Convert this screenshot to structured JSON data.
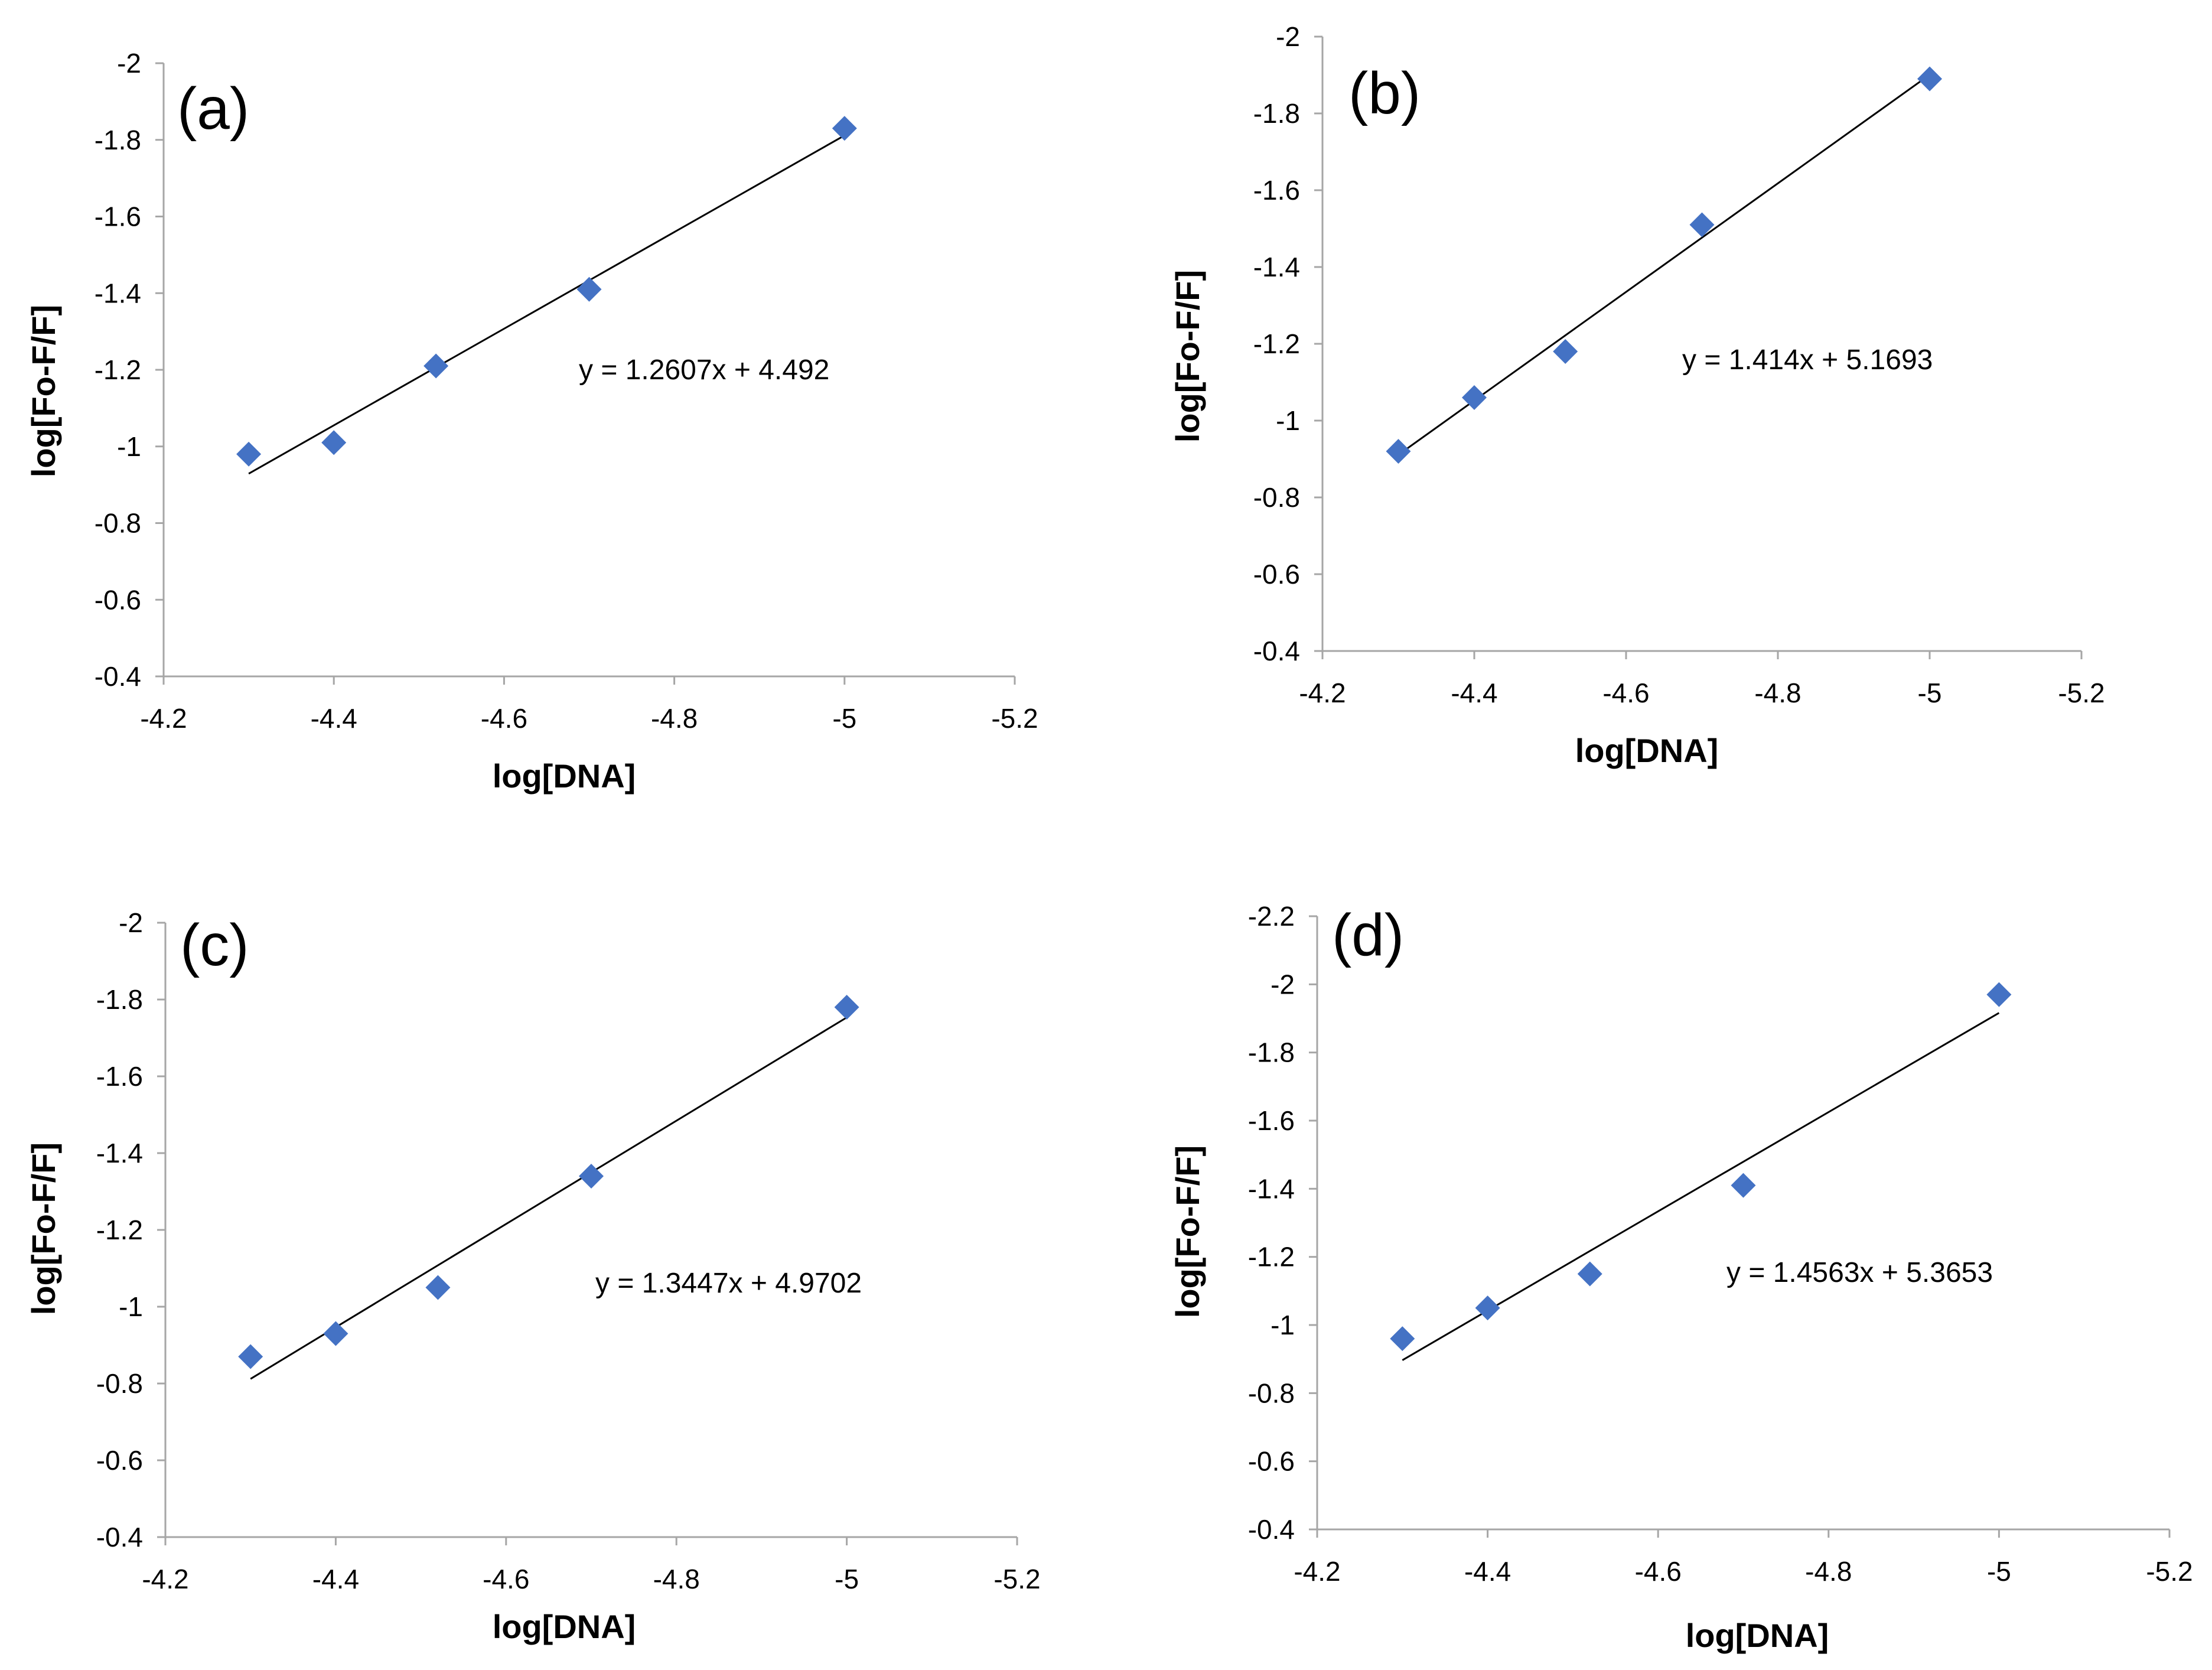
{
  "figure": {
    "marker_color": "#4472C4",
    "trend_color": "#000000",
    "axis_color": "#a6a6a6"
  },
  "chart_data": [
    {
      "type": "scatter",
      "panel_label": "(a)",
      "xlabel": "log[DNA]",
      "ylabel": "log[Fo-F/F]",
      "xlim": [
        -4.2,
        -5.2
      ],
      "ylim": [
        -0.4,
        -2
      ],
      "x_ticks": [
        -4.2,
        -4.4,
        -4.6,
        -4.8,
        -5,
        -5.2
      ],
      "x_tick_labels": [
        "-4.2",
        "-4.4",
        "-4.6",
        "-4.8",
        "-5",
        "-5.2"
      ],
      "y_ticks": [
        -0.4,
        -0.6,
        -0.8,
        -1,
        -1.2,
        -1.4,
        -1.6,
        -1.8,
        -2
      ],
      "y_tick_labels": [
        "-0.4",
        "-0.6",
        "-0.8",
        "-1",
        "-1.2",
        "-1.4",
        "-1.6",
        "-1.8",
        "-2"
      ],
      "x": [
        -4.3,
        -4.4,
        -4.52,
        -4.7,
        -5.0
      ],
      "y": [
        -0.98,
        -1.01,
        -1.21,
        -1.41,
        -1.83
      ],
      "trendline": {
        "slope": 1.2607,
        "intercept": 4.492,
        "x_range": [
          -4.3,
          -5.0
        ]
      },
      "equation": "y = 1.2607x + 4.492"
    },
    {
      "type": "scatter",
      "panel_label": "(b)",
      "xlabel": "log[DNA]",
      "ylabel": "log[Fo-F/F]",
      "xlim": [
        -4.2,
        -5.2
      ],
      "ylim": [
        -0.4,
        -2
      ],
      "x_ticks": [
        -4.2,
        -4.4,
        -4.6,
        -4.8,
        -5,
        -5.2
      ],
      "x_tick_labels": [
        "-4.2",
        "-4.4",
        "-4.6",
        "-4.8",
        "-5",
        "-5.2"
      ],
      "y_ticks": [
        -0.4,
        -0.6,
        -0.8,
        -1,
        -1.2,
        -1.4,
        -1.6,
        -1.8,
        -2
      ],
      "y_tick_labels": [
        "-0.4",
        "-0.6",
        "-0.8",
        "-1",
        "-1.2",
        "-1.4",
        "-1.6",
        "-1.8",
        "-2"
      ],
      "x": [
        -4.3,
        -4.4,
        -4.52,
        -4.7,
        -5.0
      ],
      "y": [
        -0.92,
        -1.06,
        -1.18,
        -1.51,
        -1.89
      ],
      "trendline": {
        "slope": 1.414,
        "intercept": 5.1693,
        "x_range": [
          -4.3,
          -5.0
        ]
      },
      "equation": "y = 1.414x + 5.1693"
    },
    {
      "type": "scatter",
      "panel_label": "(c)",
      "xlabel": "log[DNA]",
      "ylabel": "log[Fo-F/F]",
      "xlim": [
        -4.2,
        -5.2
      ],
      "ylim": [
        -0.4,
        -2
      ],
      "x_ticks": [
        -4.2,
        -4.4,
        -4.6,
        -4.8,
        -5,
        -5.2
      ],
      "x_tick_labels": [
        "-4.2",
        "-4.4",
        "-4.6",
        "-4.8",
        "-5",
        "-5.2"
      ],
      "y_ticks": [
        -0.4,
        -0.6,
        -0.8,
        -1,
        -1.2,
        -1.4,
        -1.6,
        -1.8,
        -2
      ],
      "y_tick_labels": [
        "-0.4",
        "-0.6",
        "-0.8",
        "-1",
        "-1.2",
        "-1.4",
        "-1.6",
        "-1.8",
        "-2"
      ],
      "x": [
        -4.3,
        -4.4,
        -4.52,
        -4.7,
        -5.0
      ],
      "y": [
        -0.87,
        -0.93,
        -1.05,
        -1.34,
        -1.78
      ],
      "trendline": {
        "slope": 1.3447,
        "intercept": 4.9702,
        "x_range": [
          -4.3,
          -5.0
        ]
      },
      "equation": "y = 1.3447x + 4.9702"
    },
    {
      "type": "scatter",
      "panel_label": "(d)",
      "xlabel": "log[DNA]",
      "ylabel": "log[Fo-F/F]",
      "xlim": [
        -4.2,
        -5.2
      ],
      "ylim": [
        -0.4,
        -2.2
      ],
      "x_ticks": [
        -4.2,
        -4.4,
        -4.6,
        -4.8,
        -5,
        -5.2
      ],
      "x_tick_labels": [
        "-4.2",
        "-4.4",
        "-4.6",
        "-4.8",
        "-5",
        "-5.2"
      ],
      "y_ticks": [
        -0.4,
        -0.6,
        -0.8,
        -1,
        -1.2,
        -1.4,
        -1.6,
        -1.8,
        -2,
        -2.2
      ],
      "y_tick_labels": [
        "-0.4",
        "-0.6",
        "-0.8",
        "-1",
        "-1.2",
        "-1.4",
        "-1.6",
        "-1.8",
        "-2",
        "-2.2"
      ],
      "x": [
        -4.3,
        -4.4,
        -4.52,
        -4.7,
        -5.0
      ],
      "y": [
        -0.96,
        -1.05,
        -1.15,
        -1.41,
        -1.97
      ],
      "trendline": {
        "slope": 1.4563,
        "intercept": 5.3653,
        "x_range": [
          -4.3,
          -5.0
        ]
      },
      "equation": "y = 1.4563x + 5.3653"
    }
  ]
}
